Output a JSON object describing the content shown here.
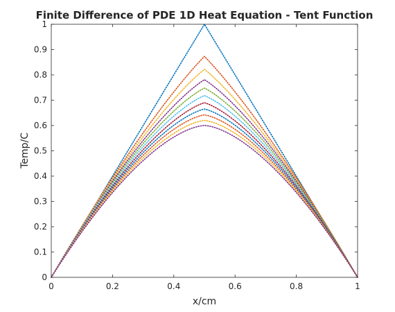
{
  "chart_data": {
    "type": "line",
    "title": "Finite Difference of PDE 1D Heat Equation - Tent Function",
    "xlabel": "x/cm",
    "ylabel": "Temp/C",
    "xlim": [
      0,
      1
    ],
    "ylim": [
      0,
      1
    ],
    "xticks": [
      0,
      0.2,
      0.4,
      0.6,
      0.8,
      1
    ],
    "xtick_labels": [
      "0",
      "0.2",
      "0.4",
      "0.6",
      "0.8",
      "1"
    ],
    "yticks": [
      0,
      0.1,
      0.2,
      0.3,
      0.4,
      0.5,
      0.6,
      0.7,
      0.8,
      0.9,
      1
    ],
    "ytick_labels": [
      "0",
      "0.1",
      "0.2",
      "0.3",
      "0.4",
      "0.5",
      "0.6",
      "0.7",
      "0.8",
      "0.9",
      "1"
    ],
    "grid": false,
    "legend": "none",
    "line_style": "dotted",
    "series": [
      {
        "peak": 1.0,
        "color": "#0072BD"
      },
      {
        "peak": 0.873,
        "color": "#D95319"
      },
      {
        "peak": 0.822,
        "color": "#EDB120"
      },
      {
        "peak": 0.781,
        "color": "#7E2F8E"
      },
      {
        "peak": 0.748,
        "color": "#77AC30"
      },
      {
        "peak": 0.718,
        "color": "#4DBEEE"
      },
      {
        "peak": 0.69,
        "color": "#A2142F"
      },
      {
        "peak": 0.665,
        "color": "#0072BD"
      },
      {
        "peak": 0.642,
        "color": "#D95319"
      },
      {
        "peak": 0.62,
        "color": "#EDB120"
      },
      {
        "peak": 0.6,
        "color": "#7E2F8E"
      }
    ]
  }
}
